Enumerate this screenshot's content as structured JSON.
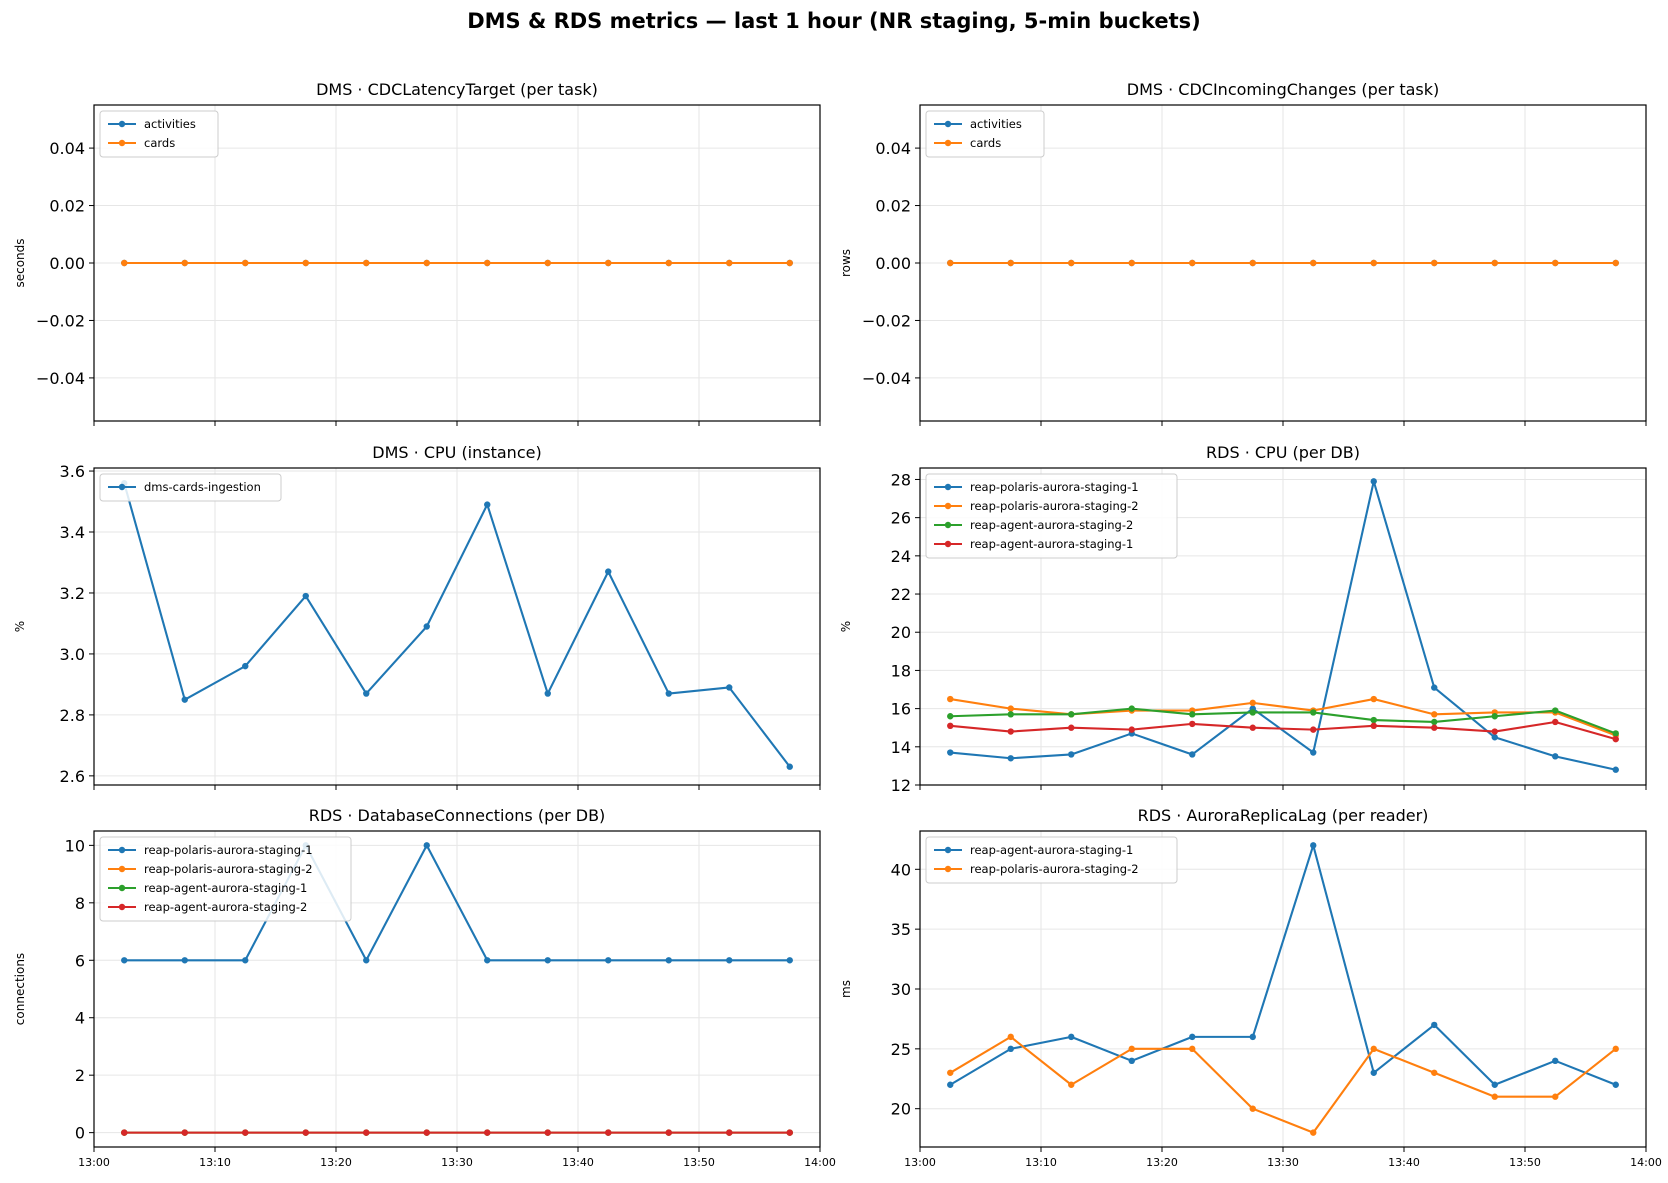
{
  "suptitle": "DMS & RDS metrics — last 1 hour (NR staging, 5-min buckets)",
  "colors": {
    "blue": "#1f77b4",
    "orange": "#ff7f0e",
    "green": "#2ca02c",
    "red": "#d62728",
    "grid": "#e6e6e6"
  },
  "chart_data": [
    {
      "id": "cdc-latency",
      "type": "line",
      "title": "DMS · CDCLatencyTarget (per task)",
      "ylabel": "seconds",
      "ylim": [
        -0.055,
        0.055
      ],
      "yticks": [
        -0.04,
        -0.02,
        0.0,
        0.02,
        0.04
      ],
      "ytick_labels": [
        "−0.04",
        "−0.02",
        "0.00",
        "0.02",
        "0.04"
      ],
      "x": [
        "13:02:30",
        "13:07:30",
        "13:12:30",
        "13:17:30",
        "13:22:30",
        "13:27:30",
        "13:32:30",
        "13:37:30",
        "13:42:30",
        "13:47:30",
        "13:52:30",
        "13:57:30"
      ],
      "series": [
        {
          "name": "activities",
          "color": "#1f77b4",
          "values": [
            0,
            0,
            0,
            0,
            0,
            0,
            0,
            0,
            0,
            0,
            0,
            0
          ]
        },
        {
          "name": "cards",
          "color": "#ff7f0e",
          "values": [
            0,
            0,
            0,
            0,
            0,
            0,
            0,
            0,
            0,
            0,
            0,
            0
          ]
        }
      ]
    },
    {
      "id": "cdc-incoming",
      "type": "line",
      "title": "DMS · CDCIncomingChanges (per task)",
      "ylabel": "rows",
      "ylim": [
        -0.055,
        0.055
      ],
      "yticks": [
        -0.04,
        -0.02,
        0.0,
        0.02,
        0.04
      ],
      "ytick_labels": [
        "−0.04",
        "−0.02",
        "0.00",
        "0.02",
        "0.04"
      ],
      "x": [
        "13:02:30",
        "13:07:30",
        "13:12:30",
        "13:17:30",
        "13:22:30",
        "13:27:30",
        "13:32:30",
        "13:37:30",
        "13:42:30",
        "13:47:30",
        "13:52:30",
        "13:57:30"
      ],
      "series": [
        {
          "name": "activities",
          "color": "#1f77b4",
          "values": [
            0,
            0,
            0,
            0,
            0,
            0,
            0,
            0,
            0,
            0,
            0,
            0
          ]
        },
        {
          "name": "cards",
          "color": "#ff7f0e",
          "values": [
            0,
            0,
            0,
            0,
            0,
            0,
            0,
            0,
            0,
            0,
            0,
            0
          ]
        }
      ]
    },
    {
      "id": "dms-cpu",
      "type": "line",
      "title": "DMS · CPU (instance)",
      "ylabel": "%",
      "ylim": [
        2.57,
        3.61
      ],
      "yticks": [
        2.6,
        2.8,
        3.0,
        3.2,
        3.4,
        3.6
      ],
      "ytick_labels": [
        "2.6",
        "2.8",
        "3.0",
        "3.2",
        "3.4",
        "3.6"
      ],
      "x": [
        "13:02:30",
        "13:07:30",
        "13:12:30",
        "13:17:30",
        "13:22:30",
        "13:27:30",
        "13:32:30",
        "13:37:30",
        "13:42:30",
        "13:47:30",
        "13:52:30",
        "13:57:30"
      ],
      "series": [
        {
          "name": "dms-cards-ingestion",
          "color": "#1f77b4",
          "values": [
            3.56,
            2.85,
            2.96,
            3.19,
            2.87,
            3.09,
            3.49,
            2.87,
            3.27,
            2.87,
            2.89,
            2.63
          ]
        }
      ]
    },
    {
      "id": "rds-cpu",
      "type": "line",
      "title": "RDS · CPU (per DB)",
      "ylabel": "%",
      "ylim": [
        12.0,
        28.6
      ],
      "yticks": [
        12,
        14,
        16,
        18,
        20,
        22,
        24,
        26,
        28
      ],
      "ytick_labels": [
        "12",
        "14",
        "16",
        "18",
        "20",
        "22",
        "24",
        "26",
        "28"
      ],
      "x": [
        "13:02:30",
        "13:07:30",
        "13:12:30",
        "13:17:30",
        "13:22:30",
        "13:27:30",
        "13:32:30",
        "13:37:30",
        "13:42:30",
        "13:47:30",
        "13:52:30",
        "13:57:30"
      ],
      "series": [
        {
          "name": "reap-polaris-aurora-staging-1",
          "color": "#1f77b4",
          "values": [
            13.7,
            13.4,
            13.6,
            14.7,
            13.6,
            16.0,
            13.7,
            27.9,
            17.1,
            14.5,
            13.5,
            12.8
          ]
        },
        {
          "name": "reap-polaris-aurora-staging-2",
          "color": "#ff7f0e",
          "values": [
            16.5,
            16.0,
            15.7,
            15.9,
            15.9,
            16.3,
            15.9,
            16.5,
            15.7,
            15.8,
            15.8,
            14.6
          ]
        },
        {
          "name": "reap-agent-aurora-staging-2",
          "color": "#2ca02c",
          "values": [
            15.6,
            15.7,
            15.7,
            16.0,
            15.7,
            15.8,
            15.8,
            15.4,
            15.3,
            15.6,
            15.9,
            14.7
          ]
        },
        {
          "name": "reap-agent-aurora-staging-1",
          "color": "#d62728",
          "values": [
            15.1,
            14.8,
            15.0,
            14.9,
            15.2,
            15.0,
            14.9,
            15.1,
            15.0,
            14.8,
            15.3,
            14.4
          ]
        }
      ]
    },
    {
      "id": "rds-connections",
      "type": "line",
      "title": "RDS · DatabaseConnections (per DB)",
      "ylabel": "connections",
      "ylim": [
        -0.5,
        10.5
      ],
      "yticks": [
        0,
        2,
        4,
        6,
        8,
        10
      ],
      "ytick_labels": [
        "0",
        "2",
        "4",
        "6",
        "8",
        "10"
      ],
      "x": [
        "13:02:30",
        "13:07:30",
        "13:12:30",
        "13:17:30",
        "13:22:30",
        "13:27:30",
        "13:32:30",
        "13:37:30",
        "13:42:30",
        "13:47:30",
        "13:52:30",
        "13:57:30"
      ],
      "series": [
        {
          "name": "reap-polaris-aurora-staging-1",
          "color": "#1f77b4",
          "values": [
            6,
            6,
            6,
            10,
            6,
            10,
            6,
            6,
            6,
            6,
            6,
            6
          ]
        },
        {
          "name": "reap-polaris-aurora-staging-2",
          "color": "#ff7f0e",
          "values": [
            0,
            0,
            0,
            0,
            0,
            0,
            0,
            0,
            0,
            0,
            0,
            0
          ]
        },
        {
          "name": "reap-agent-aurora-staging-1",
          "color": "#2ca02c",
          "values": [
            0,
            0,
            0,
            0,
            0,
            0,
            0,
            0,
            0,
            0,
            0,
            0
          ]
        },
        {
          "name": "reap-agent-aurora-staging-2",
          "color": "#d62728",
          "values": [
            0,
            0,
            0,
            0,
            0,
            0,
            0,
            0,
            0,
            0,
            0,
            0
          ]
        }
      ]
    },
    {
      "id": "rds-replica-lag",
      "type": "line",
      "title": "RDS · AuroraReplicaLag (per reader)",
      "ylabel": "ms",
      "ylim": [
        16.8,
        43.2
      ],
      "yticks": [
        20,
        25,
        30,
        35,
        40
      ],
      "ytick_labels": [
        "20",
        "25",
        "30",
        "35",
        "40"
      ],
      "x": [
        "13:02:30",
        "13:07:30",
        "13:12:30",
        "13:17:30",
        "13:22:30",
        "13:27:30",
        "13:32:30",
        "13:37:30",
        "13:42:30",
        "13:47:30",
        "13:52:30",
        "13:57:30"
      ],
      "series": [
        {
          "name": "reap-agent-aurora-staging-1",
          "color": "#1f77b4",
          "values": [
            22,
            25,
            26,
            24,
            26,
            26,
            42,
            23,
            27,
            22,
            24,
            22
          ]
        },
        {
          "name": "reap-polaris-aurora-staging-2",
          "color": "#ff7f0e",
          "values": [
            23,
            26,
            22,
            25,
            25,
            20,
            18,
            25,
            23,
            21,
            21,
            25
          ]
        }
      ]
    }
  ],
  "x_axis": {
    "range": [
      "13:00",
      "14:00"
    ],
    "ticks": [
      "13:00",
      "13:10",
      "13:20",
      "13:30",
      "13:40",
      "13:50",
      "14:00"
    ]
  }
}
